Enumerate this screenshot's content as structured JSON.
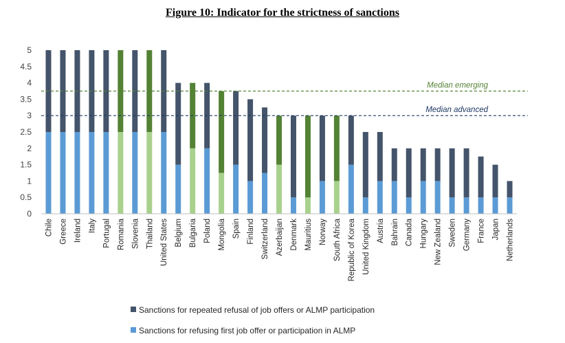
{
  "chart_data": {
    "type": "bar",
    "stacked": true,
    "title": "Figure 10: Indicator for the strictness of sanctions",
    "xlabel": "",
    "ylabel": "",
    "ylim": [
      0,
      5
    ],
    "yticks": [
      "0",
      "0.5",
      "1",
      "1.5",
      "2",
      "2.5",
      "3",
      "3.5",
      "4",
      "4.5",
      "5"
    ],
    "grid": false,
    "legend_position": "bottom-left",
    "categories": [
      "Chile",
      "Greece",
      "Ireland",
      "Italy",
      "Portugal",
      "Romania",
      "Slovenia",
      "Thailand",
      "United States",
      "Belgium",
      "Bulgaria",
      "Poland",
      "Mongolia",
      "Spain",
      "Finland",
      "Switzerland",
      "Azerbaijan",
      "Denmark",
      "Mauritius",
      "Norway",
      "South Africa",
      "Republic of Korea",
      "United Kingdom",
      "Austria",
      "Bahrain",
      "Canada",
      "Hungary",
      "New Zealand",
      "Sweden",
      "Germany",
      "France",
      "Japan",
      "Netherlands"
    ],
    "emerging": [
      false,
      false,
      false,
      false,
      false,
      true,
      false,
      true,
      false,
      false,
      true,
      false,
      true,
      false,
      false,
      false,
      true,
      false,
      true,
      false,
      true,
      false,
      false,
      false,
      false,
      false,
      false,
      false,
      false,
      false,
      false,
      false,
      false
    ],
    "series": [
      {
        "name": "Sanctions for refusing first job offer or participation in ALMP",
        "values": [
          2.5,
          2.5,
          2.5,
          2.5,
          2.5,
          2.5,
          2.5,
          2.5,
          2.5,
          1.5,
          2,
          2,
          1.25,
          1.5,
          1,
          1.25,
          1.5,
          0.5,
          0.5,
          1,
          1,
          1.5,
          0.5,
          1,
          1,
          0.5,
          1,
          1,
          0.5,
          0.5,
          0.5,
          0.5,
          0.5
        ]
      },
      {
        "name": "Sanctions for repeated refusal of job offers or ALMP participation",
        "values": [
          2.5,
          2.5,
          2.5,
          2.5,
          2.5,
          2.5,
          2.5,
          2.5,
          2.5,
          2.5,
          2,
          2,
          2.5,
          2.25,
          2.5,
          2,
          1.5,
          2.5,
          2.5,
          2,
          2,
          1.5,
          2,
          1.5,
          1,
          1.5,
          1,
          1,
          1.5,
          1.5,
          1.25,
          1,
          0.5
        ]
      }
    ],
    "reference_lines": [
      {
        "label": "Median emerging",
        "value": 3.75
      },
      {
        "label": "Median advanced",
        "value": 3
      }
    ],
    "colors": {
      "advanced_first": "#5b9bd5",
      "advanced_repeated": "#44546a",
      "emerging_first": "#a9d18e",
      "emerging_repeated": "#548235",
      "median_emerging": "#548235",
      "median_advanced": "#1f3864"
    }
  }
}
